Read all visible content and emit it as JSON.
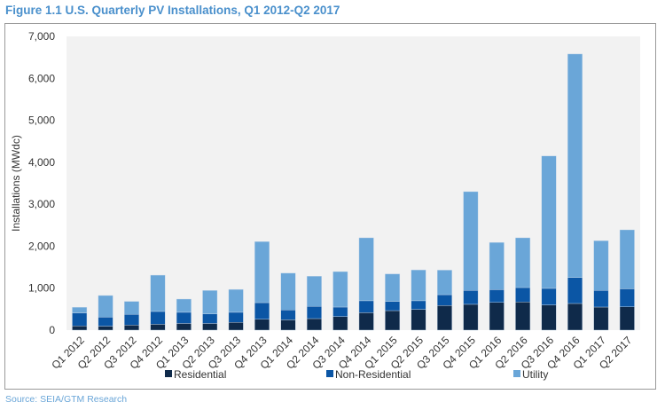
{
  "chart_data": {
    "type": "bar",
    "stacked": true,
    "title": "Figure 1.1 U.S. Quarterly PV Installations, Q1 2012-Q2 2017",
    "xlabel": "",
    "ylabel": "Installations (MWdc)",
    "ylim": [
      0,
      7000
    ],
    "yticks": [
      0,
      1000,
      2000,
      3000,
      4000,
      5000,
      6000,
      7000
    ],
    "ytick_labels": [
      "0",
      "1,000",
      "2,000",
      "3,000",
      "4,000",
      "5,000",
      "6,000",
      "7,000"
    ],
    "grid": false,
    "legend_position": "bottom",
    "categories": [
      "Q1 2012",
      "Q2 2012",
      "Q3 2012",
      "Q4 2012",
      "Q1 2013",
      "Q2 2013",
      "Q3 2013",
      "Q4 2013",
      "Q1 2014",
      "Q2 2014",
      "Q3 2014",
      "Q4 2014",
      "Q1 2015",
      "Q2 2015",
      "Q3 2015",
      "Q4 2015",
      "Q1 2016",
      "Q2 2016",
      "Q3 2016",
      "Q4 2016",
      "Q1 2017",
      "Q2 2017"
    ],
    "series": [
      {
        "name": "Residential",
        "color": "#0f2a4a",
        "values": [
          100,
          95,
          120,
          140,
          160,
          160,
          185,
          260,
          245,
          275,
          325,
          415,
          465,
          495,
          585,
          615,
          660,
          670,
          600,
          635,
          550,
          555
        ]
      },
      {
        "name": "Non-Residential",
        "color": "#0b56a5",
        "values": [
          310,
          215,
          255,
          305,
          265,
          225,
          240,
          395,
          235,
          290,
          225,
          285,
          220,
          205,
          260,
          330,
          305,
          345,
          395,
          620,
          395,
          430
        ]
      },
      {
        "name": "Utility",
        "color": "#6aa6d8",
        "values": [
          135,
          515,
          310,
          865,
          315,
          560,
          545,
          1455,
          880,
          720,
          845,
          1500,
          655,
          735,
          585,
          2355,
          1125,
          1185,
          3155,
          5325,
          1185,
          1405
        ]
      }
    ],
    "plot_background": "#f2f2f2"
  },
  "source": "Source: SEIA/GTM Research"
}
